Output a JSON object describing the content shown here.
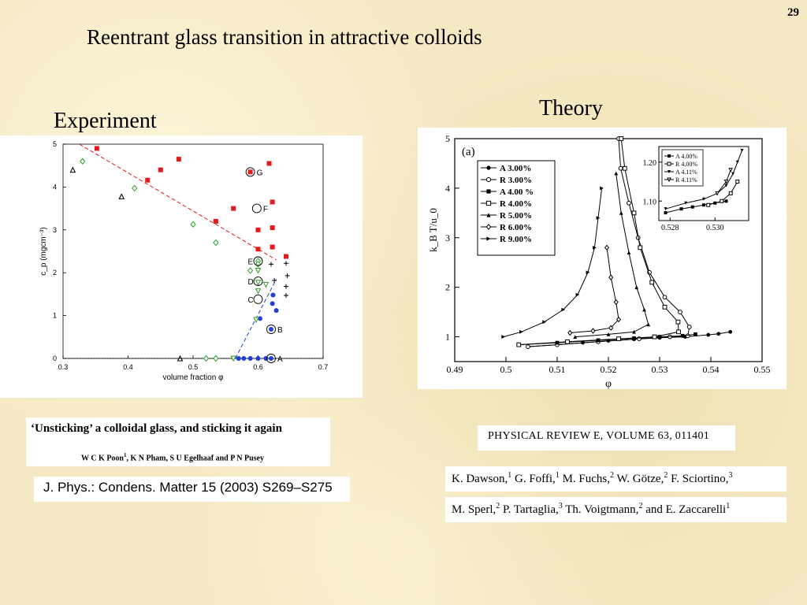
{
  "slide": {
    "page_number": "29",
    "title": "Reentrant glass transition in attractive colloids",
    "experiment_heading": "Experiment",
    "theory_heading": "Theory"
  },
  "experiment_citation": {
    "title": "‘Unsticking’ a colloidal glass, and sticking it again",
    "authors": [
      {
        "name": "W C K Poon",
        "sup": "1"
      },
      {
        "name": "K N Pham",
        "sup": ""
      },
      {
        "name": "S U Egelhaaf",
        "sup": ""
      },
      {
        "name": "P N Pusey",
        "sup": ""
      }
    ],
    "authors_sep": ", ",
    "authors_last_sep": " and ",
    "journal": "J. Phys.: Condens. Matter 15 (2003) S269–S275"
  },
  "theory_citation": {
    "journal": "PHYSICAL REVIEW E, VOLUME 63, 011401",
    "authors_line1": [
      {
        "name": "K. Dawson,",
        "sup": "1"
      },
      {
        "name": "G. Foffi,",
        "sup": "1"
      },
      {
        "name": "M. Fuchs,",
        "sup": "2"
      },
      {
        "name": "W. Götze,",
        "sup": "2"
      },
      {
        "name": "F. Sciortino,",
        "sup": "3"
      }
    ],
    "authors_line2": [
      {
        "name": "M. Sperl,",
        "sup": "2"
      },
      {
        "name": "P. Tartaglia,",
        "sup": "3"
      },
      {
        "name": "Th. Voigtmann,",
        "sup": "2"
      },
      {
        "name": "and E. Zaccarelli",
        "sup": "1"
      }
    ]
  },
  "chart_data": [
    {
      "type": "scatter",
      "xlabel": "volume fraction φ",
      "ylabel": "c_p (mgcm⁻³)",
      "xlim": [
        0.3,
        0.7
      ],
      "ylim": [
        0,
        5
      ],
      "xticks": [
        "0.3",
        "0.4",
        "0.5",
        "0.6",
        "0.7"
      ],
      "yticks": [
        "0",
        "1",
        "2",
        "3",
        "4",
        "5"
      ],
      "series": [
        {
          "marker": "square",
          "color": "#e31a1c",
          "points": [
            [
              0.352,
              4.9
            ],
            [
              0.43,
              4.16
            ],
            [
              0.45,
              4.4
            ],
            [
              0.478,
              4.65
            ],
            [
              0.535,
              3.2
            ],
            [
              0.562,
              3.5
            ],
            [
              0.588,
              4.35
            ],
            [
              0.617,
              4.55
            ],
            [
              0.6,
              3.0
            ],
            [
              0.622,
              3.65
            ],
            [
              0.622,
              3.05
            ],
            [
              0.6,
              2.55
            ],
            [
              0.622,
              2.6
            ],
            [
              0.643,
              2.38
            ]
          ]
        },
        {
          "marker": "circle",
          "color": "#1f3fd8",
          "points": [
            [
              0.57,
              0.0
            ],
            [
              0.578,
              0.0
            ],
            [
              0.588,
              0.0
            ],
            [
              0.6,
              0.0
            ],
            [
              0.612,
              0.0
            ],
            [
              0.62,
              0.0
            ],
            [
              0.603,
              0.93
            ],
            [
              0.62,
              0.68
            ],
            [
              0.622,
              1.28
            ],
            [
              0.628,
              1.12
            ],
            [
              0.623,
              1.48
            ]
          ]
        },
        {
          "marker": "diamond-open",
          "color": "#2ca02c",
          "points": [
            [
              0.33,
              4.6
            ],
            [
              0.41,
              3.97
            ],
            [
              0.5,
              3.13
            ],
            [
              0.535,
              2.7
            ],
            [
              0.52,
              0.0
            ],
            [
              0.535,
              0.0
            ],
            [
              0.6,
              2.27
            ],
            [
              0.588,
              2.05
            ],
            [
              0.6,
              2.2
            ]
          ]
        },
        {
          "marker": "triangle-down-open",
          "color": "#2ca02c",
          "points": [
            [
              0.562,
              0.0
            ],
            [
              0.6,
              2.05
            ],
            [
              0.597,
              0.9
            ],
            [
              0.6,
              1.57
            ],
            [
              0.6,
              1.77
            ],
            [
              0.612,
              1.72
            ]
          ]
        },
        {
          "marker": "triangle-open",
          "color": "#000000",
          "points": [
            [
              0.315,
              4.4
            ],
            [
              0.39,
              3.78
            ],
            [
              0.48,
              0.0
            ]
          ]
        },
        {
          "marker": "plus",
          "color": "#000000",
          "points": [
            [
              0.62,
              2.2
            ],
            [
              0.643,
              2.22
            ],
            [
              0.645,
              1.93
            ],
            [
              0.643,
              1.68
            ],
            [
              0.643,
              1.47
            ],
            [
              0.625,
              1.82
            ]
          ]
        }
      ],
      "labelled_points": [
        {
          "label": "A",
          "x": 0.62,
          "y": 0.0
        },
        {
          "label": "B",
          "x": 0.62,
          "y": 0.68
        },
        {
          "label": "C",
          "x": 0.6,
          "y": 1.38
        },
        {
          "label": "D",
          "x": 0.6,
          "y": 1.8
        },
        {
          "label": "E",
          "x": 0.6,
          "y": 2.27
        },
        {
          "label": "F",
          "x": 0.598,
          "y": 3.5
        },
        {
          "label": "G",
          "x": 0.588,
          "y": 4.35
        }
      ],
      "fit_lines": [
        {
          "color": "#e31a1c",
          "style": "dashed",
          "points": [
            [
              0.325,
              5.0
            ],
            [
              0.628,
              2.3
            ]
          ]
        },
        {
          "color": "#1f3fd8",
          "style": "dashed",
          "points": [
            [
              0.565,
              0.0
            ],
            [
              0.628,
              1.85
            ]
          ]
        },
        {
          "color": "#000000",
          "style": "dotted",
          "points": [
            [
              0.3,
              0.0
            ],
            [
              0.7,
              0.0
            ]
          ]
        }
      ]
    },
    {
      "type": "line",
      "panel_label": "(a)",
      "xlabel": "φ",
      "ylabel": "k_B T/u_0",
      "xlim": [
        0.49,
        0.55
      ],
      "ylim": [
        0.5,
        5
      ],
      "xticks": [
        "0.49",
        "0.5",
        "0.51",
        "0.52",
        "0.53",
        "0.54",
        "0.55"
      ],
      "yticks": [
        "1",
        "2",
        "3",
        "4",
        "5"
      ],
      "legend_position": "top-left",
      "series": [
        {
          "name": "A 3.00%",
          "marker": "circle-filled",
          "points": [
            [
              0.5043,
              0.8
            ],
            [
              0.51,
              0.84
            ],
            [
              0.515,
              0.88
            ],
            [
              0.52,
              0.92
            ],
            [
              0.525,
              0.95
            ],
            [
              0.53,
              0.98
            ],
            [
              0.535,
              1.0
            ],
            [
              0.5395,
              1.04
            ],
            [
              0.5415,
              1.06
            ],
            [
              0.5438,
              1.1
            ]
          ]
        },
        {
          "name": "R 3.00%",
          "marker": "circle-open",
          "points": [
            [
              0.5043,
              0.8
            ],
            [
              0.51,
              0.84
            ],
            [
              0.518,
              0.9
            ],
            [
              0.526,
              0.96
            ],
            [
              0.532,
              1.0
            ],
            [
              0.5355,
              1.02
            ],
            [
              0.5358,
              1.2
            ],
            [
              0.534,
              1.5
            ],
            [
              0.531,
              1.8
            ],
            [
              0.528,
              2.3
            ],
            [
              0.5258,
              3.0
            ],
            [
              0.524,
              3.7
            ],
            [
              0.5224,
              4.4
            ],
            [
              0.522,
              5.0
            ]
          ]
        },
        {
          "name": "A 4.00 %",
          "marker": "square-filled",
          "points": [
            [
              0.5025,
              0.84
            ],
            [
              0.51,
              0.88
            ],
            [
              0.518,
              0.93
            ],
            [
              0.525,
              0.97
            ],
            [
              0.53,
              1.0
            ],
            [
              0.5345,
              1.02
            ],
            [
              0.537,
              1.05
            ]
          ]
        },
        {
          "name": "R 4.00%",
          "marker": "square-open",
          "points": [
            [
              0.5025,
              0.84
            ],
            [
              0.512,
              0.9
            ],
            [
              0.522,
              0.96
            ],
            [
              0.529,
              1.0
            ],
            [
              0.5337,
              1.1
            ],
            [
              0.5336,
              1.3
            ],
            [
              0.531,
              1.6
            ],
            [
              0.5285,
              2.1
            ],
            [
              0.5262,
              2.8
            ],
            [
              0.525,
              3.5
            ],
            [
              0.5232,
              4.4
            ],
            [
              0.5225,
              5.0
            ]
          ]
        },
        {
          "name": "R 5.00%",
          "marker": "triangle-filled",
          "points": [
            [
              0.5135,
              1.0
            ],
            [
              0.52,
              1.05
            ],
            [
              0.525,
              1.1
            ],
            [
              0.5278,
              1.25
            ],
            [
              0.527,
              1.55
            ],
            [
              0.5255,
              2.0
            ],
            [
              0.524,
              2.7
            ],
            [
              0.5225,
              3.5
            ],
            [
              0.5215,
              4.3
            ]
          ]
        },
        {
          "name": "R 6.00%",
          "marker": "diamond-open",
          "points": [
            [
              0.5125,
              1.08
            ],
            [
              0.517,
              1.12
            ],
            [
              0.5205,
              1.18
            ],
            [
              0.522,
              1.35
            ],
            [
              0.5215,
              1.7
            ],
            [
              0.5205,
              2.2
            ],
            [
              0.5197,
              2.8
            ]
          ]
        },
        {
          "name": "R 9.00%",
          "marker": "triangle-right",
          "points": [
            [
              0.4995,
              1.0
            ],
            [
              0.503,
              1.1
            ],
            [
              0.5075,
              1.3
            ],
            [
              0.5112,
              1.55
            ],
            [
              0.514,
              1.85
            ],
            [
              0.516,
              2.3
            ],
            [
              0.5173,
              2.8
            ],
            [
              0.518,
              3.4
            ],
            [
              0.5187,
              4.0
            ]
          ]
        }
      ],
      "inset": {
        "xlim": [
          0.5275,
          0.5315
        ],
        "ylim": [
          1.05,
          1.24
        ],
        "xticks": [
          "0.528",
          "0.530"
        ],
        "yticks": [
          "1.10",
          "1.20"
        ],
        "series": [
          {
            "name": "A 4.00%",
            "marker": "square-filled",
            "points": [
              [
                0.5278,
                1.07
              ],
              [
                0.5285,
                1.08
              ],
              [
                0.529,
                1.085
              ],
              [
                0.5295,
                1.09
              ],
              [
                0.53,
                1.095
              ],
              [
                0.5305,
                1.1
              ]
            ]
          },
          {
            "name": "R 4.00%",
            "marker": "square-open",
            "points": [
              [
                0.5297,
                1.09
              ],
              [
                0.5303,
                1.1
              ],
              [
                0.5307,
                1.12
              ],
              [
                0.531,
                1.15
              ]
            ]
          },
          {
            "name": "A 4.11%",
            "marker": "triangle-down-filled",
            "points": [
              [
                0.5278,
                1.08
              ],
              [
                0.5287,
                1.095
              ],
              [
                0.5295,
                1.105
              ],
              [
                0.5301,
                1.12
              ],
              [
                0.5305,
                1.14
              ],
              [
                0.5308,
                1.17
              ],
              [
                0.531,
                1.2
              ],
              [
                0.5312,
                1.23
              ]
            ]
          },
          {
            "name": "R 4.11%",
            "marker": "triangle-down-open",
            "points": [
              [
                0.5301,
                1.12
              ],
              [
                0.5305,
                1.15
              ],
              [
                0.5307,
                1.18
              ]
            ]
          }
        ]
      }
    }
  ]
}
